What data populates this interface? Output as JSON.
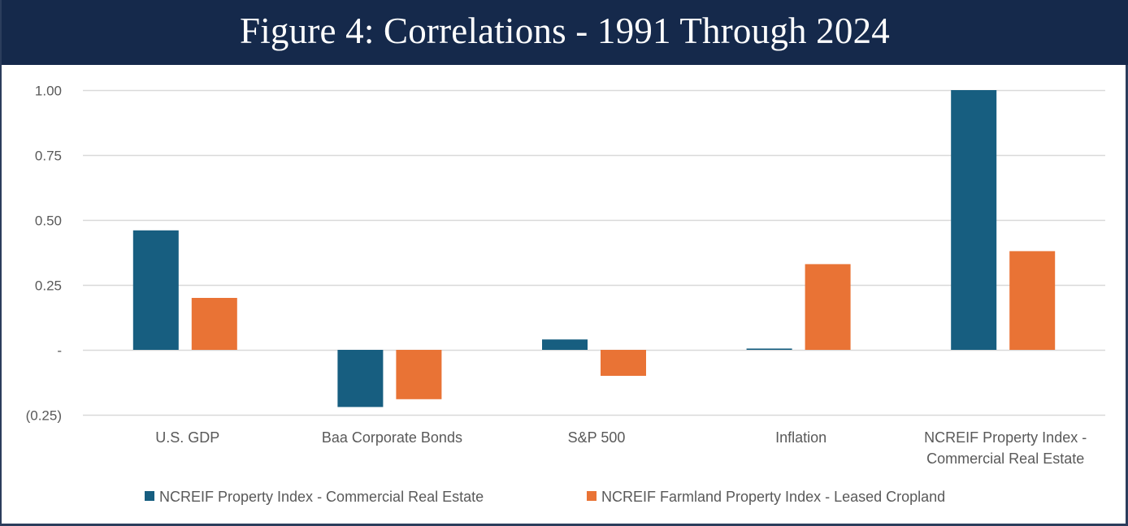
{
  "header": {
    "title": "Figure 4: Correlations - 1991 Through 2024"
  },
  "colors": {
    "header_bg": "#15294b",
    "series_1": "#175e80",
    "series_2": "#e97335",
    "gridline": "#d9d9d9",
    "text": "#595959"
  },
  "chart_data": {
    "type": "bar",
    "title": "Figure 4: Correlations - 1991 Through 2024",
    "xlabel": "",
    "ylabel": "",
    "ylim": [
      -0.25,
      1.0
    ],
    "yticks": [
      1.0,
      0.75,
      0.5,
      0.25,
      0,
      -0.25
    ],
    "ytick_labels": [
      "1.00",
      "0.75",
      "0.50",
      "0.25",
      "-",
      "(0.25)"
    ],
    "grid": true,
    "legend_position": "bottom",
    "categories": [
      [
        "U.S. GDP"
      ],
      [
        "Baa Corporate Bonds"
      ],
      [
        "S&P 500"
      ],
      [
        "Inflation"
      ],
      [
        "NCREIF Property Index -",
        "Commercial Real Estate"
      ]
    ],
    "series": [
      {
        "name": "NCREIF Property Index - Commercial Real Estate",
        "color": "#175e80",
        "values": [
          0.46,
          -0.22,
          0.04,
          0.005,
          1.0
        ]
      },
      {
        "name": "NCREIF Farmland Property Index - Leased Cropland",
        "color": "#e97335",
        "values": [
          0.2,
          -0.19,
          -0.1,
          0.33,
          0.38
        ]
      }
    ]
  }
}
